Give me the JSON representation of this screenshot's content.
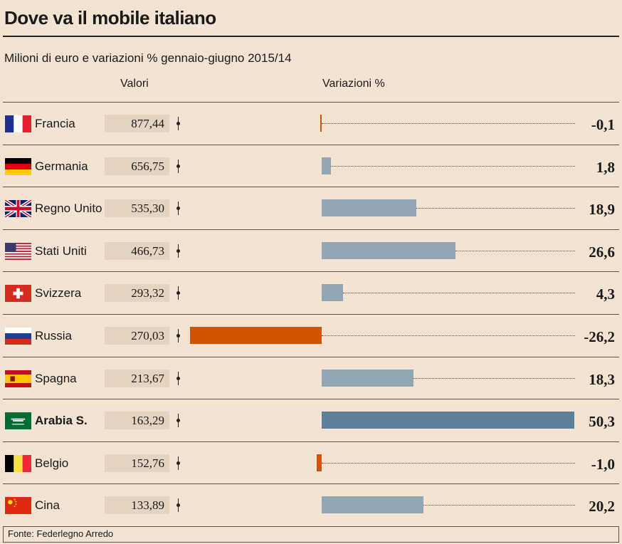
{
  "title": "Dove va il mobile italiano",
  "subtitle": "Milioni di euro e variazioni % gennaio-giugno 2015/14",
  "col_values": "Valori",
  "col_changes": "Variazioni %",
  "source": "Fonte: Federlegno Arredo",
  "colors": {
    "background": "#f3e3d2",
    "positive": "#93a6b4",
    "negative": "#d35400",
    "highlight": "#5e7f99",
    "value_box": "#e6d4c2"
  },
  "chart_data": {
    "type": "bar",
    "categories": [
      "Francia",
      "Germania",
      "Regno Unito",
      "Stati Uniti",
      "Svizzera",
      "Russia",
      "Spagna",
      "Arabia S.",
      "Belgio",
      "Cina"
    ],
    "series": [
      {
        "name": "Valori",
        "values": [
          877.44,
          656.75,
          535.3,
          466.73,
          293.32,
          270.03,
          213.67,
          163.29,
          152.76,
          133.89
        ]
      },
      {
        "name": "Variazioni %",
        "values": [
          -0.1,
          1.8,
          18.9,
          26.6,
          4.3,
          -26.2,
          18.3,
          50.3,
          -1.0,
          20.2
        ]
      }
    ],
    "highlighted": "Arabia S.",
    "xlim": [
      -26.2,
      50.3
    ]
  },
  "rows": [
    {
      "country": "Francia",
      "value": "877,44",
      "change": "-0,1",
      "flag": "france-flag"
    },
    {
      "country": "Germania",
      "value": "656,75",
      "change": "1,8",
      "flag": "germany-flag"
    },
    {
      "country": "Regno Unito",
      "value": "535,30",
      "change": "18,9",
      "flag": "uk-flag"
    },
    {
      "country": "Stati Uniti",
      "value": "466,73",
      "change": "26,6",
      "flag": "usa-flag"
    },
    {
      "country": "Svizzera",
      "value": "293,32",
      "change": "4,3",
      "flag": "switzerland-flag"
    },
    {
      "country": "Russia",
      "value": "270,03",
      "change": "-26,2",
      "flag": "russia-flag"
    },
    {
      "country": "Spagna",
      "value": "213,67",
      "change": "18,3",
      "flag": "spain-flag"
    },
    {
      "country": "Arabia S.",
      "value": "163,29",
      "change": "50,3",
      "flag": "saudi-flag"
    },
    {
      "country": "Belgio",
      "value": "152,76",
      "change": "-1,0",
      "flag": "belgium-flag"
    },
    {
      "country": "Cina",
      "value": "133,89",
      "change": "20,2",
      "flag": "china-flag"
    }
  ]
}
